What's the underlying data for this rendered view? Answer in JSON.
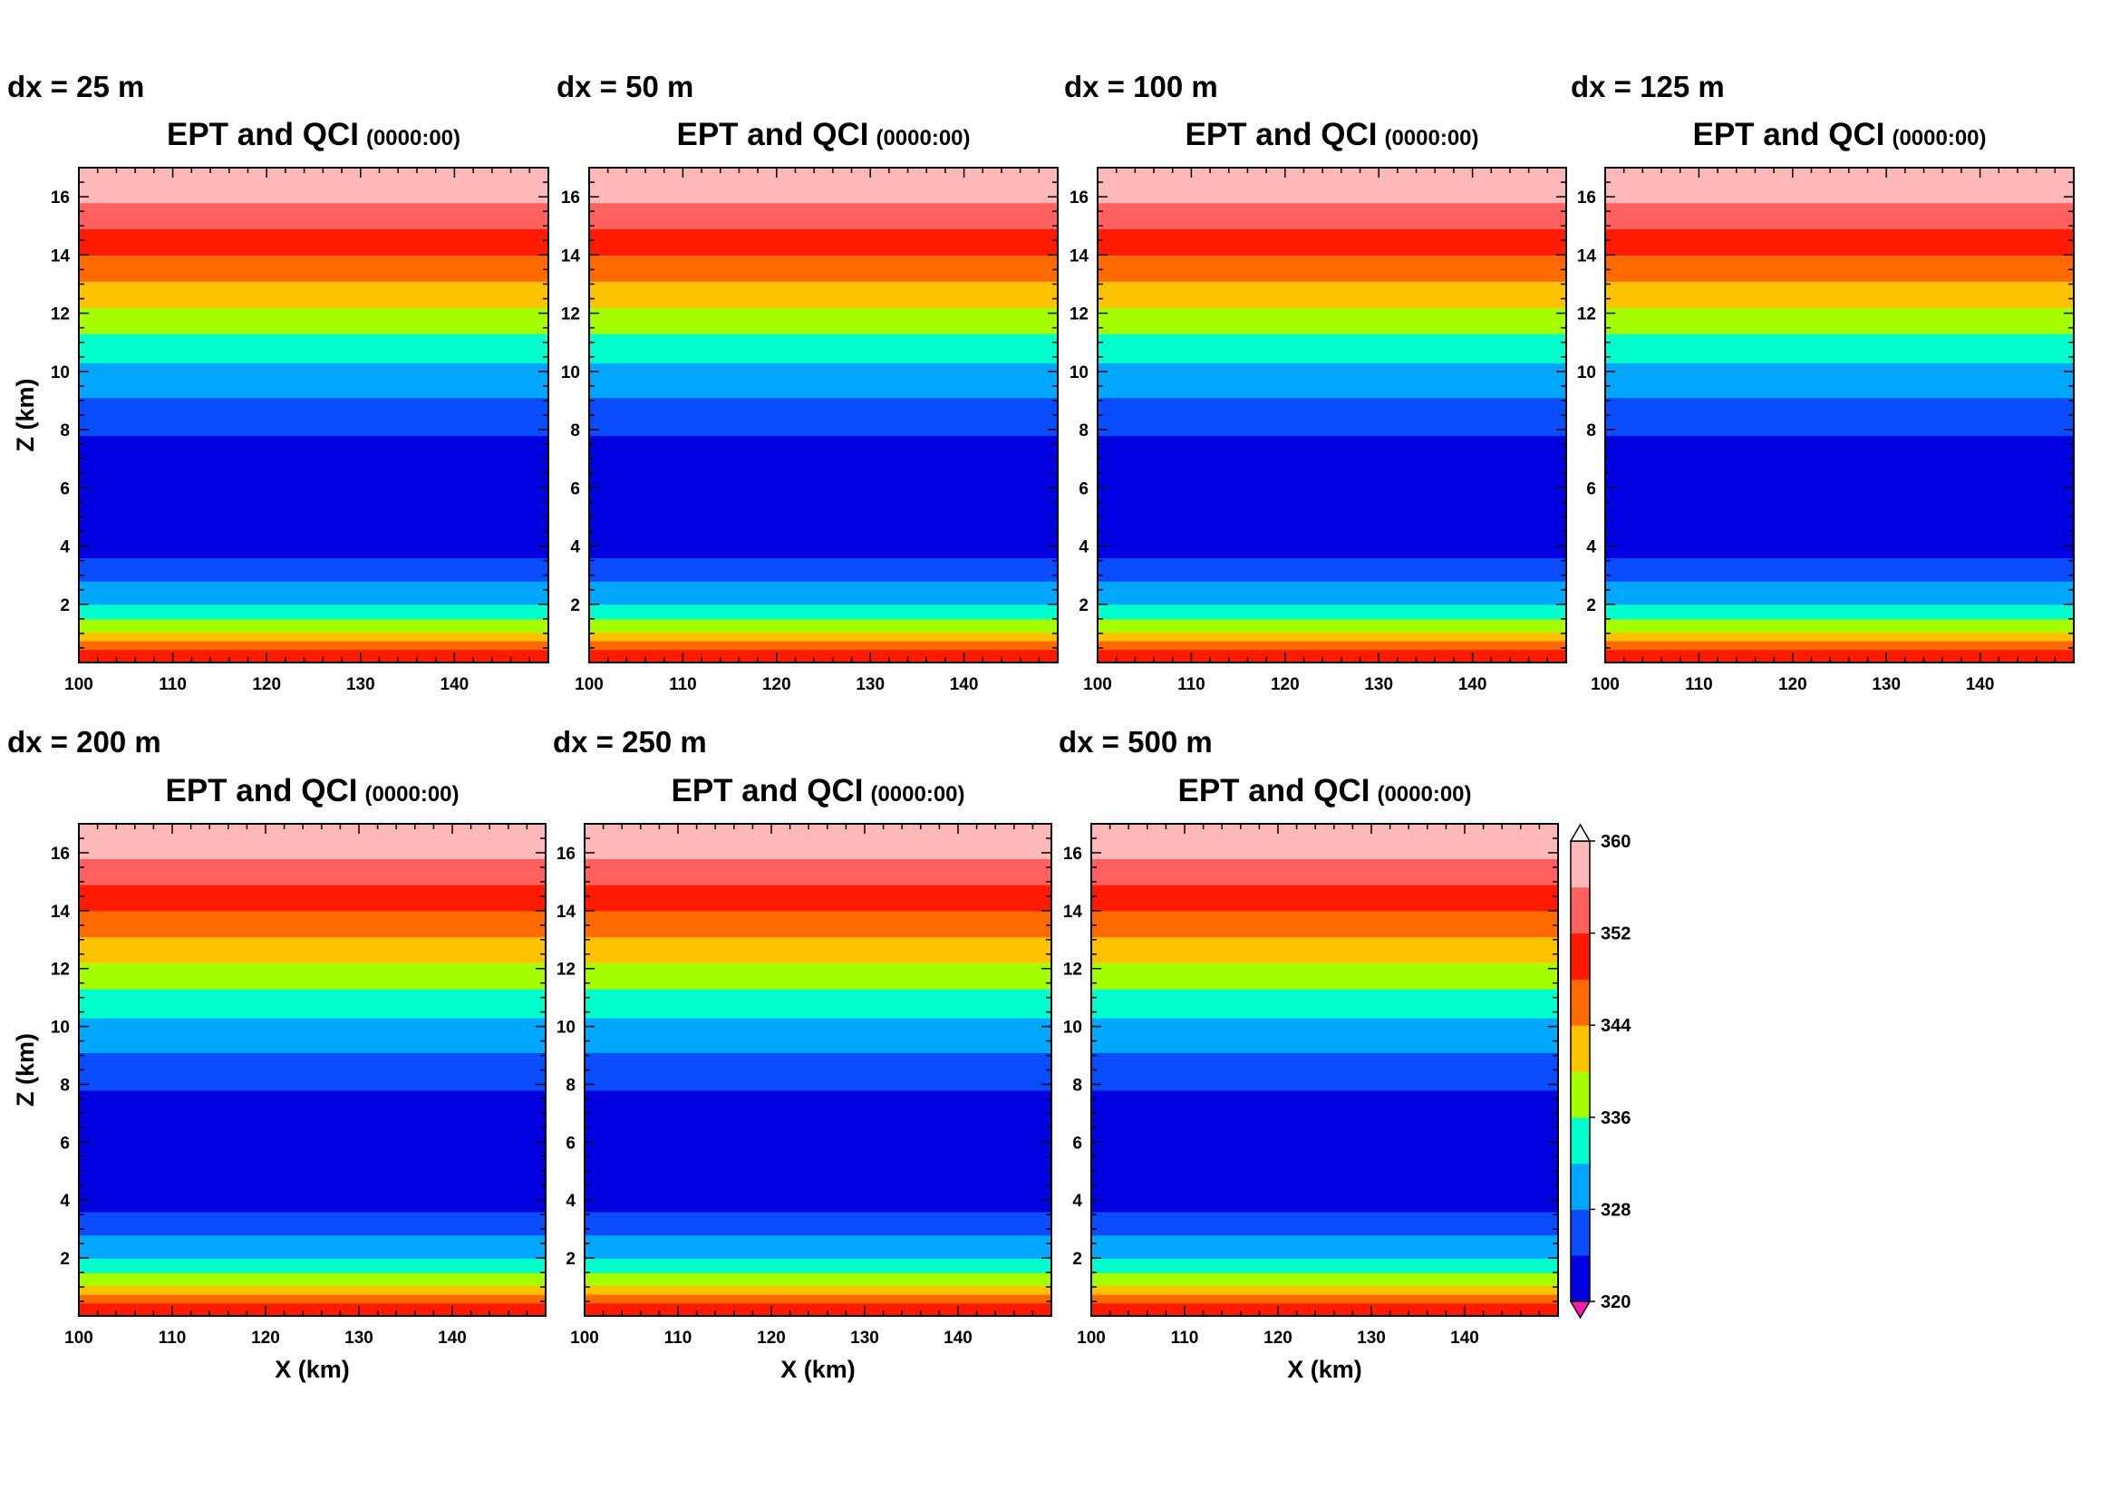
{
  "chart_data": {
    "type": "heatmap",
    "panels": [
      {
        "dx_label": "dx = 25 m",
        "title": "EPT and QCI",
        "time": "(0000:00)",
        "xlabel": "",
        "ylabel": "Z (km)"
      },
      {
        "dx_label": "dx = 50 m",
        "title": "EPT and QCI",
        "time": "(0000:00)",
        "xlabel": "",
        "ylabel": ""
      },
      {
        "dx_label": "dx = 100 m",
        "title": "EPT and QCI",
        "time": "(0000:00)",
        "xlabel": "",
        "ylabel": ""
      },
      {
        "dx_label": "dx = 125 m",
        "title": "EPT and QCI",
        "time": "(0000:00)",
        "xlabel": "",
        "ylabel": ""
      },
      {
        "dx_label": "dx = 200 m",
        "title": "EPT and QCI",
        "time": "(0000:00)",
        "xlabel": "X (km)",
        "ylabel": "Z (km)"
      },
      {
        "dx_label": "dx = 250 m",
        "title": "EPT and QCI",
        "time": "(0000:00)",
        "xlabel": "X (km)",
        "ylabel": ""
      },
      {
        "dx_label": "dx = 500 m",
        "title": "EPT and QCI",
        "time": "(0000:00)",
        "xlabel": "X (km)",
        "ylabel": ""
      }
    ],
    "xlim": [
      100,
      150
    ],
    "ylim": [
      0,
      17
    ],
    "x_ticks": [
      100,
      110,
      120,
      130,
      140
    ],
    "y_ticks": [
      2,
      4,
      6,
      8,
      10,
      12,
      14,
      16
    ],
    "layers": [
      {
        "z0": 0.0,
        "z1": 0.45,
        "color": "#ff1a00"
      },
      {
        "z0": 0.45,
        "z1": 0.75,
        "color": "#ff6a00"
      },
      {
        "z0": 0.75,
        "z1": 1.05,
        "color": "#ffc200"
      },
      {
        "z0": 1.05,
        "z1": 1.5,
        "color": "#a6ff00"
      },
      {
        "z0": 1.5,
        "z1": 2.0,
        "color": "#00ffcc"
      },
      {
        "z0": 2.0,
        "z1": 2.8,
        "color": "#00a6ff"
      },
      {
        "z0": 2.8,
        "z1": 3.6,
        "color": "#0a4cff"
      },
      {
        "z0": 3.6,
        "z1": 7.8,
        "color": "#0000e0"
      },
      {
        "z0": 7.8,
        "z1": 9.1,
        "color": "#0a4cff"
      },
      {
        "z0": 9.1,
        "z1": 10.3,
        "color": "#00a6ff"
      },
      {
        "z0": 10.3,
        "z1": 11.3,
        "color": "#00ffcc"
      },
      {
        "z0": 11.3,
        "z1": 12.2,
        "color": "#a6ff00"
      },
      {
        "z0": 12.2,
        "z1": 13.1,
        "color": "#ffc200"
      },
      {
        "z0": 13.1,
        "z1": 14.0,
        "color": "#ff6a00"
      },
      {
        "z0": 14.0,
        "z1": 14.9,
        "color": "#ff1a00"
      },
      {
        "z0": 14.9,
        "z1": 15.8,
        "color": "#ff6060"
      },
      {
        "z0": 15.8,
        "z1": 17.0,
        "color": "#ffb8b8"
      }
    ],
    "colorbar": {
      "min": 320,
      "max": 360,
      "labels": [
        "360",
        "352",
        "344",
        "336",
        "328",
        "320"
      ],
      "levels": [
        320,
        324,
        328,
        332,
        336,
        340,
        344,
        348,
        352,
        356,
        360
      ],
      "colors": [
        "#0000e0",
        "#0a4cff",
        "#00a6ff",
        "#00ffcc",
        "#a6ff00",
        "#ffc200",
        "#ff6a00",
        "#ff1a00",
        "#ff6060",
        "#ffb8b8"
      ],
      "under_color": "#ff1ab0",
      "over_color": "#ffffff"
    }
  }
}
